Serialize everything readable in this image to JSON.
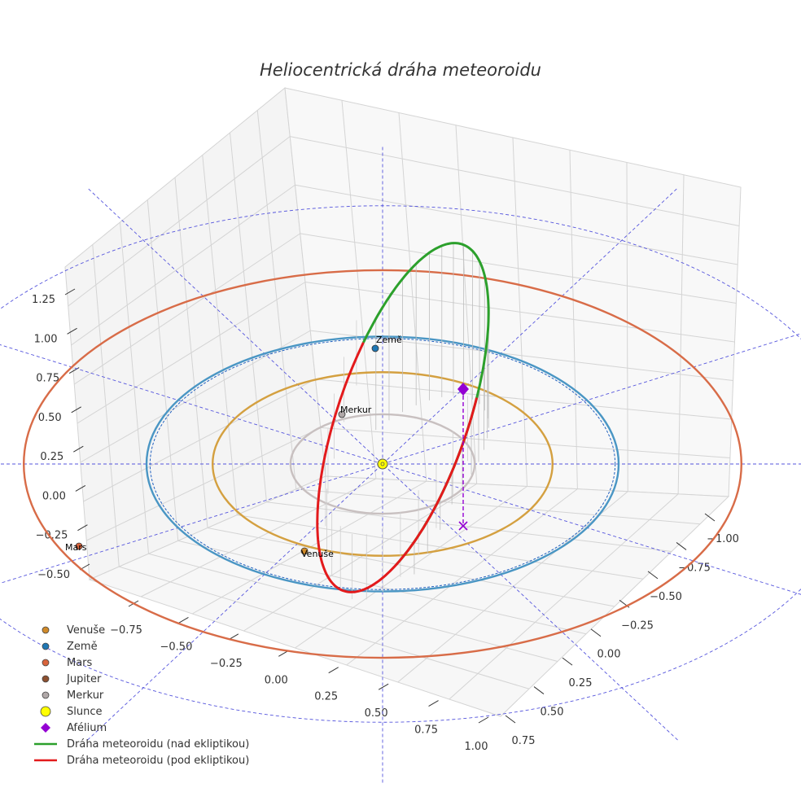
{
  "chart_data": {
    "type": "3d-line",
    "title": "Heliocentrická dráha meteoroidu",
    "z_axis": {
      "ticks": [
        "1.25",
        "1.00",
        "0.75",
        "0.50",
        "0.25",
        "0.00",
        "−0.25",
        "−0.50"
      ]
    },
    "x_axis": {
      "ticks": [
        "−0.75",
        "−0.50",
        "−0.25",
        "0.00",
        "0.25",
        "0.50",
        "0.75",
        "1.00"
      ]
    },
    "y_axis": {
      "ticks": [
        "−1.00",
        "−0.75",
        "−0.50",
        "−0.25",
        "0.00",
        "0.25",
        "0.50",
        "0.75"
      ]
    },
    "bodies": [
      {
        "name": "Venuše",
        "color": "#d08a2a",
        "orbit_radius_au": 0.72
      },
      {
        "name": "Země",
        "color": "#1f77b4",
        "orbit_radius_au": 1.0
      },
      {
        "name": "Mars",
        "color": "#d9643c",
        "orbit_radius_au": 1.52
      },
      {
        "name": "Jupiter",
        "color": "#8c5030"
      },
      {
        "name": "Merkur",
        "color": "#b0a8a8",
        "orbit_radius_au": 0.39
      },
      {
        "name": "Slunce",
        "color": "#ffff00"
      }
    ],
    "aphelion": {
      "name": "Afélium",
      "color": "#9400d3"
    },
    "meteoroid_orbit": [
      {
        "name": "Dráha meteoroidu (nad ekliptikou)",
        "color": "#2ca02c"
      },
      {
        "name": "Dráha meteoroidu (pod ekliptikou)",
        "color": "#e31a1c"
      }
    ]
  },
  "legend": [
    {
      "label": "Venuše",
      "marker": "circle",
      "color": "#d08a2a"
    },
    {
      "label": "Země",
      "marker": "circle",
      "color": "#1f77b4"
    },
    {
      "label": "Mars",
      "marker": "circle",
      "color": "#d9643c"
    },
    {
      "label": "Jupiter",
      "marker": "circle",
      "color": "#8c5030"
    },
    {
      "label": "Merkur",
      "marker": "circle",
      "color": "#b0a8a8"
    },
    {
      "label": "Slunce",
      "marker": "big-circle",
      "color": "#ffff00"
    },
    {
      "label": "Afélium",
      "marker": "diamond",
      "color": "#9400d3"
    },
    {
      "label": "Dráha meteoroidu (nad ekliptikou)",
      "marker": "line",
      "color": "#2ca02c"
    },
    {
      "label": "Dráha meteoroidu (pod ekliptikou)",
      "marker": "line",
      "color": "#e31a1c"
    }
  ]
}
